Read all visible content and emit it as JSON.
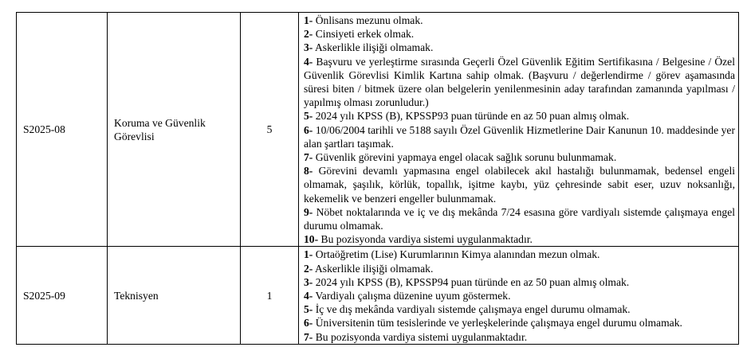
{
  "rows": [
    {
      "code": "S2025-08",
      "title": "Koruma ve Güvenlik Görevlisi",
      "count": "5",
      "requirements": [
        {
          "num": "1-",
          "text": " Önlisans mezunu olmak."
        },
        {
          "num": "2-",
          "text": " Cinsiyeti erkek olmak."
        },
        {
          "num": "3-",
          "text": " Askerlikle ilişiği olmamak."
        },
        {
          "num": "4-",
          "text": " Başvuru ve yerleştirme sırasında Geçerli Özel Güvenlik Eğitim Sertifikasına / Belgesine / Özel Güvenlik Görevlisi Kimlik Kartına sahip olmak. (Başvuru / değerlendirme / görev aşamasında süresi biten / bitmek üzere olan belgelerin yenilenmesinin aday tarafından zamanında yapılması / yapılmış olması zorunludur.)"
        },
        {
          "num": "5-",
          "text": " 2024 yılı KPSS (B), KPSSP93 puan türünde en az 50 puan almış olmak."
        },
        {
          "num": "6-",
          "text": " 10/06/2004 tarihli ve 5188 sayılı Özel Güvenlik Hizmetlerine Dair Kanunun 10. maddesinde yer alan şartları taşımak."
        },
        {
          "num": "7-",
          "text": " Güvenlik görevini yapmaya engel olacak sağlık sorunu bulunmamak."
        },
        {
          "num": "8-",
          "text": " Görevini devamlı yapmasına engel olabilecek akıl hastalığı bulunmamak, bedensel engeli olmamak, şaşılık, körlük, topallık, işitme kaybı, yüz çehresinde sabit eser, uzuv noksanlığı, kekemelik ve benzeri engeller bulunmamak."
        },
        {
          "num": "9-",
          "text": " Nöbet noktalarında ve iç ve dış mekânda 7/24 esasına göre vardiyalı sistemde çalışmaya engel durumu olmamak."
        },
        {
          "num": "10-",
          "text": " Bu pozisyonda vardiya sistemi uygulanmaktadır."
        }
      ]
    },
    {
      "code": "S2025-09",
      "title": "Teknisyen",
      "count": "1",
      "requirements": [
        {
          "num": "1-",
          "text": " Ortaöğretim (Lise) Kurumlarının Kimya alanından mezun olmak."
        },
        {
          "num": "2-",
          "text": " Askerlikle ilişiği olmamak."
        },
        {
          "num": "3-",
          "text": " 2024 yılı KPSS (B), KPSSP94 puan türünde en az 50 puan almış olmak."
        },
        {
          "num": "4-",
          "text": " Vardiyalı çalışma düzenine uyum göstermek."
        },
        {
          "num": "5-",
          "text": " İç ve dış mekânda vardiyalı sistemde çalışmaya engel durumu olmamak."
        },
        {
          "num": "6-",
          "text": " Üniversitenin tüm tesislerinde ve yerleşkelerinde çalışmaya engel durumu olmamak."
        },
        {
          "num": "7-",
          "text": " Bu pozisyonda vardiya sistemi uygulanmaktadır."
        }
      ]
    }
  ]
}
